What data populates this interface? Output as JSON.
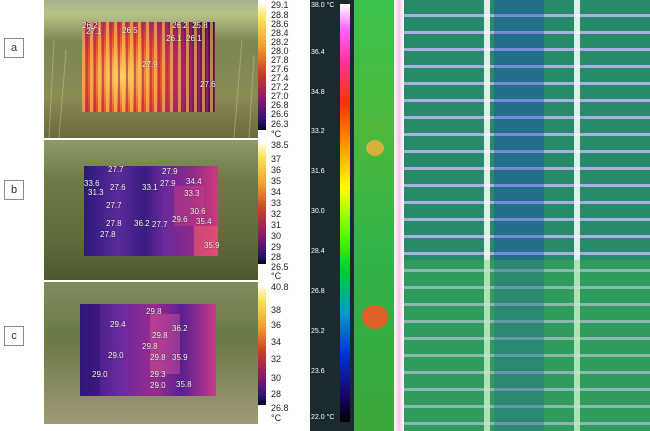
{
  "panels": [
    {
      "letter": "a",
      "labels": [
        "26.2",
        "26.5",
        "26.2",
        "25.8",
        "26.1",
        "26.1",
        "27.9",
        "27.1",
        "27.6"
      ],
      "scale": [
        "29.1",
        "28.8",
        "28.6",
        "28.4",
        "28.2",
        "28.0",
        "27.8",
        "27.6",
        "27.4",
        "27.2",
        "27.0",
        "26.8",
        "26.6",
        "26.3"
      ],
      "unit": "°C"
    },
    {
      "letter": "b",
      "labels": [
        "27.7",
        "27.9",
        "33.6",
        "31.3",
        "27.6",
        "33.1",
        "27.9",
        "34.4",
        "33.3",
        "27.7",
        "27.8",
        "36.2",
        "27.7",
        "29.6",
        "30.6",
        "27.8",
        "35.4",
        "35.9"
      ],
      "scale": [
        "38.5",
        "37",
        "36",
        "35",
        "34",
        "33",
        "32",
        "31",
        "30",
        "29",
        "28",
        "26.5"
      ],
      "unit": "°C"
    },
    {
      "letter": "c",
      "labels": [
        "29.8",
        "29.4",
        "36.2",
        "29.8",
        "29.8",
        "29.0",
        "29.8",
        "35.9",
        "29.0",
        "29.3",
        "29.0",
        "35.8"
      ],
      "scale": [
        "40.8",
        "38",
        "36",
        "34",
        "32",
        "30",
        "28",
        "26.8"
      ],
      "unit": "°C"
    }
  ],
  "aerial_scale": [
    "38.0 °C",
    "36.4",
    "34.8",
    "33.2",
    "31.6",
    "30.0",
    "28.4",
    "26.8",
    "25.2",
    "23.6",
    "22.0 °C"
  ],
  "colors": {
    "iron_hot": "#ffe89a",
    "iron_mid": "#e0442a",
    "iron_cool": "#3b0b6e"
  }
}
